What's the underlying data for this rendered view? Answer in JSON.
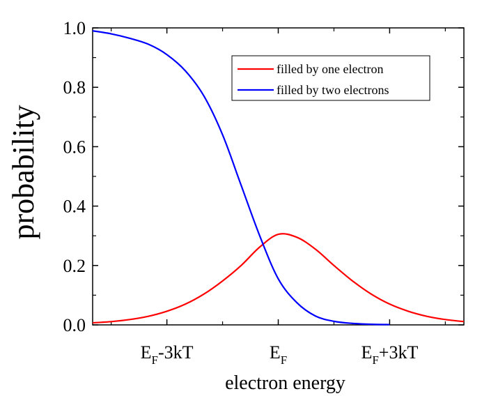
{
  "chart_data": {
    "type": "line",
    "xlabel": "electron energy",
    "ylabel": "probability",
    "xlim": [
      -5,
      5
    ],
    "ylim": [
      0,
      1.0
    ],
    "x_ticks": [
      {
        "value": -3,
        "main": "E",
        "sub": "F",
        "suffix": "-3kT"
      },
      {
        "value": 0,
        "main": "E",
        "sub": "F",
        "suffix": ""
      },
      {
        "value": 3,
        "main": "E",
        "sub": "F",
        "suffix": "+3kT"
      }
    ],
    "y_ticks": [
      "0.0",
      "0.2",
      "0.4",
      "0.6",
      "0.8",
      "1.0"
    ],
    "y_tick_values": [
      0,
      0.2,
      0.4,
      0.6,
      0.8,
      1.0
    ],
    "grid": false,
    "legend_position": "top-right",
    "series": [
      {
        "name": "filled by one electron",
        "color": "#ff0000",
        "x": [
          -5,
          -4.5,
          -4,
          -3.5,
          -3,
          -2.5,
          -2,
          -1.5,
          -1,
          -0.5,
          0,
          0.5,
          1,
          1.5,
          2,
          2.5,
          3,
          3.5,
          4,
          4.5,
          5
        ],
        "y": [
          0.007,
          0.011,
          0.018,
          0.029,
          0.046,
          0.07,
          0.104,
          0.148,
          0.2,
          0.262,
          0.305,
          0.295,
          0.255,
          0.2,
          0.148,
          0.104,
          0.07,
          0.046,
          0.029,
          0.018,
          0.011
        ]
      },
      {
        "name": "filled by two electrons",
        "color": "#0000ff",
        "x": [
          -5,
          -4.5,
          -4,
          -3.5,
          -3,
          -2.5,
          -2,
          -1.5,
          -1,
          -0.5,
          0,
          0.5,
          1,
          1.5,
          2,
          2.5,
          3
        ],
        "y": [
          0.99,
          0.98,
          0.965,
          0.945,
          0.91,
          0.855,
          0.77,
          0.64,
          0.47,
          0.3,
          0.155,
          0.075,
          0.03,
          0.012,
          0.005,
          0.002,
          0.001
        ]
      }
    ]
  }
}
